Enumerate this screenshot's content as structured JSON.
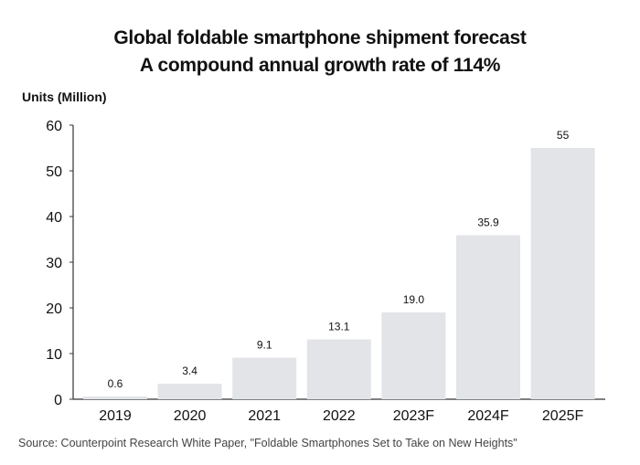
{
  "chart_data": {
    "type": "bar",
    "title": "Global foldable smartphone shipment forecast",
    "subtitle": "A compound annual growth rate of 114%",
    "ylabel": "Units (Million)",
    "xlabel": "",
    "categories": [
      "2019",
      "2020",
      "2021",
      "2022",
      "2023F",
      "2024F",
      "2025F"
    ],
    "values": [
      0.6,
      3.4,
      9.1,
      13.1,
      19.0,
      35.9,
      55
    ],
    "data_labels": [
      "0.6",
      "3.4",
      "9.1",
      "13.1",
      "19.0",
      "35.9",
      "55"
    ],
    "ylim": [
      0,
      60
    ],
    "yticks": [
      0,
      10,
      20,
      30,
      40,
      50,
      60
    ],
    "grid": false,
    "bar_color": "#e2e4e8",
    "source": "Source: Counterpoint Research White Paper, \"Foldable Smartphones Set to Take on New Heights\""
  }
}
